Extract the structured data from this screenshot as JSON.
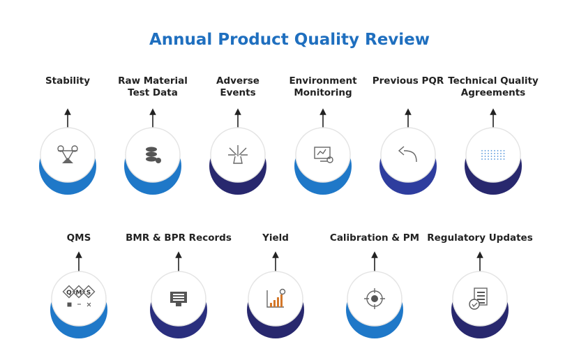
{
  "title": "Annual Product Quality Review",
  "rows": [
    [
      {
        "label_lines": [
          "Stability"
        ],
        "color": "#1f78c8"
      },
      {
        "label_lines": [
          "Raw Material",
          "Test Data"
        ],
        "color": "#1f78c8"
      },
      {
        "label_lines": [
          "Adverse",
          "Events"
        ],
        "color": "#28286e"
      },
      {
        "label_lines": [
          "Environment",
          "Monitoring"
        ],
        "color": "#1f78c8"
      },
      {
        "label_lines": [
          "Previous PQR"
        ],
        "color": "#2e3d9e"
      },
      {
        "label_lines": [
          "Technical Quality",
          "Agreements"
        ],
        "color": "#28286e"
      }
    ],
    [
      {
        "label_lines": [
          "QMS"
        ],
        "color": "#1f78c8",
        "icon_letters": [
          "Q",
          "M",
          "S"
        ]
      },
      {
        "label_lines": [
          "BMR & BPR Records"
        ],
        "color": "#2a2f7e"
      },
      {
        "label_lines": [
          "Yield"
        ],
        "color": "#28286e"
      },
      {
        "label_lines": [
          "Calibration & PM"
        ],
        "color": "#1f78c8"
      },
      {
        "label_lines": [
          "Regulatory Updates"
        ],
        "color": "#28286e"
      }
    ]
  ]
}
